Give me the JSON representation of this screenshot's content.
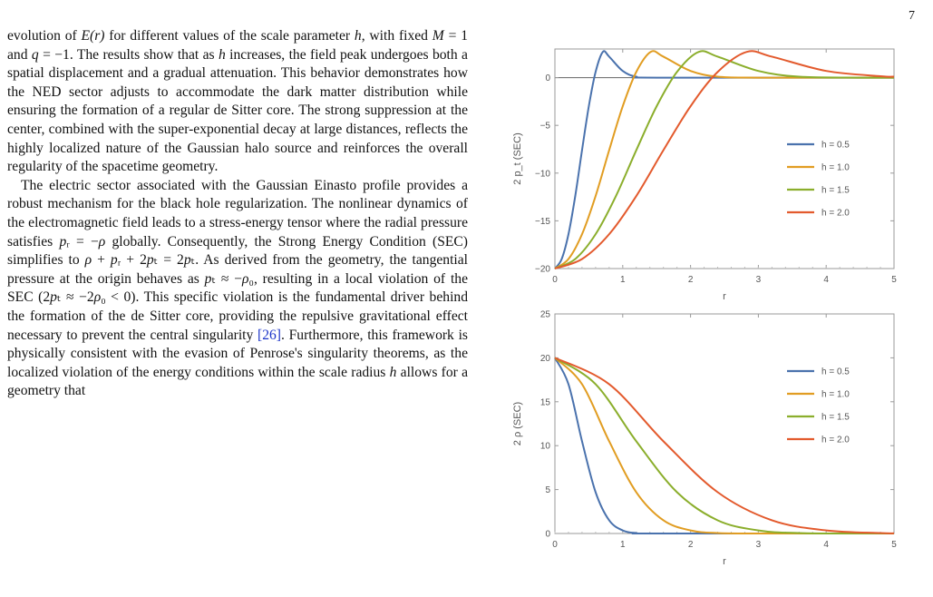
{
  "page_number": "7",
  "paragraph1": [
    {
      "t": "evolution of "
    },
    {
      "t": "E(r)",
      "i": true
    },
    {
      "t": " for different values of the scale parameter "
    },
    {
      "t": "h",
      "i": true
    },
    {
      "t": ", with fixed "
    },
    {
      "t": "M",
      "i": true
    },
    {
      "t": " = 1 and "
    },
    {
      "t": "q",
      "i": true
    },
    {
      "t": " = −1. The results show that as "
    },
    {
      "t": "h",
      "i": true
    },
    {
      "t": " increases, the field peak undergoes both a spatial displacement and a gradual attenuation. This behavior demonstrates how the NED sector adjusts to accommodate the dark matter distribution while ensuring the formation of a regular de Sitter core. The strong suppression at the center, combined with the super-exponential decay at large distances, reflects the highly localized nature of the Gaussian halo source and reinforces the overall regularity of the spacetime geometry."
    }
  ],
  "paragraph2": [
    {
      "t": "The electric sector associated with the Gaussian Einasto profile provides a robust mechanism for the black hole regularization. The nonlinear dynamics of the electromagnetic field leads to a stress-energy tensor where the radial pressure satisfies "
    },
    {
      "t": "p",
      "i": true
    },
    {
      "t": "ᵣ = −"
    },
    {
      "t": "ρ",
      "i": true
    },
    {
      "t": " globally. Consequently, the Strong Energy Condition (SEC) simplifies to "
    },
    {
      "t": "ρ",
      "i": true
    },
    {
      "t": " + "
    },
    {
      "t": "p",
      "i": true
    },
    {
      "t": "ᵣ + 2"
    },
    {
      "t": "p",
      "i": true
    },
    {
      "t": "ₜ = 2"
    },
    {
      "t": "p",
      "i": true
    },
    {
      "t": "ₜ. As derived from the geometry, the tangential pressure at the origin behaves as "
    },
    {
      "t": "p",
      "i": true
    },
    {
      "t": "ₜ ≈ −"
    },
    {
      "t": "ρ",
      "i": true
    },
    {
      "t": "₀, resulting in a local violation of the SEC (2"
    },
    {
      "t": "p",
      "i": true
    },
    {
      "t": "ₜ ≈ −2"
    },
    {
      "t": "ρ",
      "i": true
    },
    {
      "t": "₀ < 0). This specific violation is the fundamental driver behind the formation of the de Sitter core, providing the repulsive gravitational effect necessary to prevent the central singularity "
    },
    {
      "t": "[26]",
      "c": true
    },
    {
      "t": ". Furthermore, this framework is physically consistent with the evasion of Penrose's singularity theorems, as the localized violation of the energy conditions within the scale radius "
    },
    {
      "t": "h",
      "i": true
    },
    {
      "t": " allows for a geometry that"
    }
  ],
  "legend_series_labels": [
    "h = 0.5",
    "h = 1.0",
    "h = 1.5",
    "h = 2.0"
  ],
  "colors": {
    "h05": "#4a72ad",
    "h10": "#e19d22",
    "h15": "#8bae2c",
    "h20": "#e35a2d"
  },
  "chart_data": [
    {
      "type": "line",
      "xlabel": "r",
      "ylabel": "2 p_t (SEC)",
      "xlim": [
        0,
        5
      ],
      "ylim": [
        -20,
        3
      ],
      "xticks": [
        0,
        1,
        2,
        3,
        4,
        5
      ],
      "yticks": [
        0,
        -5,
        -10,
        -15,
        -20
      ],
      "legend": "right",
      "series": [
        {
          "name": "h = 0.5",
          "h": 0.5,
          "color": "#4a72ad",
          "points": [
            [
              0,
              -20
            ],
            [
              0.1,
              -19.0
            ],
            [
              0.2,
              -16.4
            ],
            [
              0.3,
              -12.4
            ],
            [
              0.4,
              -7.6
            ],
            [
              0.5,
              -3.0
            ],
            [
              0.6,
              0.6
            ],
            [
              0.707,
              2.7
            ],
            [
              0.8,
              2.2
            ],
            [
              1.0,
              0.7
            ],
            [
              1.2,
              0.1
            ],
            [
              1.5,
              0
            ],
            [
              5,
              0
            ]
          ]
        },
        {
          "name": "h = 1.0",
          "h": 1.0,
          "color": "#e19d22",
          "points": [
            [
              0,
              -20
            ],
            [
              0.2,
              -19.0
            ],
            [
              0.4,
              -16.4
            ],
            [
              0.6,
              -12.4
            ],
            [
              0.8,
              -7.6
            ],
            [
              1.0,
              -3.0
            ],
            [
              1.2,
              0.6
            ],
            [
              1.414,
              2.7
            ],
            [
              1.6,
              2.2
            ],
            [
              2.0,
              0.7
            ],
            [
              2.4,
              0.1
            ],
            [
              3.0,
              0
            ],
            [
              5,
              0
            ]
          ]
        },
        {
          "name": "h = 1.5",
          "h": 1.5,
          "color": "#8bae2c",
          "points": [
            [
              0,
              -20
            ],
            [
              0.3,
              -19.0
            ],
            [
              0.6,
              -16.4
            ],
            [
              0.9,
              -12.4
            ],
            [
              1.2,
              -7.6
            ],
            [
              1.5,
              -3.0
            ],
            [
              1.8,
              0.6
            ],
            [
              2.121,
              2.7
            ],
            [
              2.4,
              2.2
            ],
            [
              3.0,
              0.7
            ],
            [
              3.6,
              0.1
            ],
            [
              4.5,
              0
            ],
            [
              5,
              0
            ]
          ]
        },
        {
          "name": "h = 2.0",
          "h": 2.0,
          "color": "#e35a2d",
          "points": [
            [
              0,
              -20
            ],
            [
              0.4,
              -19.0
            ],
            [
              0.8,
              -16.4
            ],
            [
              1.2,
              -12.4
            ],
            [
              1.6,
              -7.6
            ],
            [
              2.0,
              -3.0
            ],
            [
              2.4,
              0.6
            ],
            [
              2.828,
              2.7
            ],
            [
              3.2,
              2.2
            ],
            [
              4.0,
              0.7
            ],
            [
              4.8,
              0.15
            ],
            [
              5,
              0.1
            ]
          ]
        }
      ]
    },
    {
      "type": "line",
      "xlabel": "r",
      "ylabel": "2 ρ (SEC)",
      "xlim": [
        0,
        5
      ],
      "ylim": [
        0,
        25
      ],
      "xticks": [
        0,
        1,
        2,
        3,
        4,
        5
      ],
      "yticks": [
        0,
        5,
        10,
        15,
        20,
        25
      ],
      "legend": "right",
      "series": [
        {
          "name": "h = 0.5",
          "h": 0.5,
          "color": "#4a72ad",
          "points": [
            [
              0,
              20
            ],
            [
              0.2,
              17.0
            ],
            [
              0.4,
              10.5
            ],
            [
              0.6,
              4.7
            ],
            [
              0.8,
              1.5
            ],
            [
              1.0,
              0.35
            ],
            [
              1.2,
              0.05
            ],
            [
              1.5,
              0
            ],
            [
              5,
              0
            ]
          ]
        },
        {
          "name": "h = 1.0",
          "h": 1.0,
          "color": "#e19d22",
          "points": [
            [
              0,
              20
            ],
            [
              0.4,
              17.0
            ],
            [
              0.8,
              10.5
            ],
            [
              1.2,
              4.7
            ],
            [
              1.6,
              1.5
            ],
            [
              2.0,
              0.35
            ],
            [
              2.4,
              0.05
            ],
            [
              3.0,
              0
            ],
            [
              5,
              0
            ]
          ]
        },
        {
          "name": "h = 1.5",
          "h": 1.5,
          "color": "#8bae2c",
          "points": [
            [
              0,
              20
            ],
            [
              0.6,
              17.0
            ],
            [
              1.2,
              10.5
            ],
            [
              1.8,
              4.7
            ],
            [
              2.4,
              1.5
            ],
            [
              3.0,
              0.35
            ],
            [
              3.6,
              0.05
            ],
            [
              4.5,
              0
            ],
            [
              5,
              0
            ]
          ]
        },
        {
          "name": "h = 2.0",
          "h": 2.0,
          "color": "#e35a2d",
          "points": [
            [
              0,
              20
            ],
            [
              0.8,
              17.0
            ],
            [
              1.6,
              10.5
            ],
            [
              2.4,
              4.7
            ],
            [
              3.2,
              1.5
            ],
            [
              4.0,
              0.35
            ],
            [
              4.8,
              0.05
            ],
            [
              5,
              0.02
            ]
          ]
        }
      ]
    }
  ]
}
